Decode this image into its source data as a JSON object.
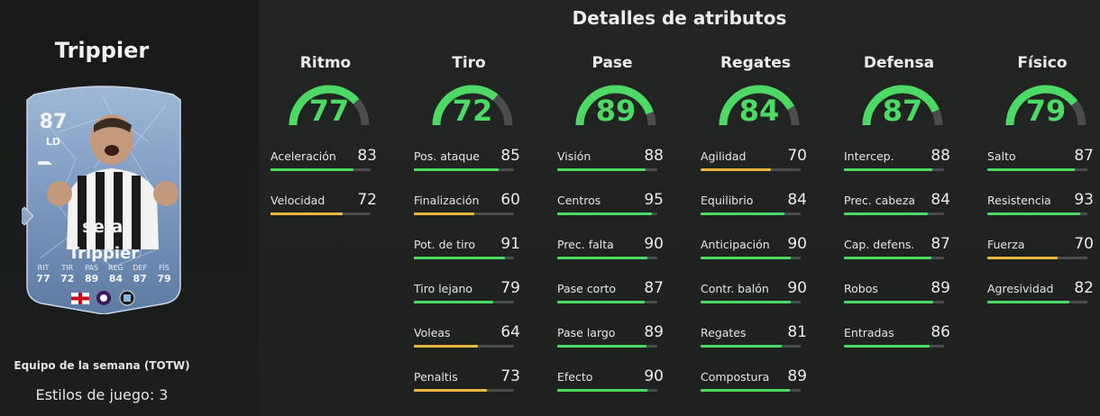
{
  "player": {
    "name": "Trippier",
    "rating": "87",
    "position": "LD",
    "sponsor": "sela",
    "card_stats": [
      {
        "label": "RIT",
        "value": "77"
      },
      {
        "label": "TIR",
        "value": "72"
      },
      {
        "label": "PAS",
        "value": "89"
      },
      {
        "label": "REG",
        "value": "84"
      },
      {
        "label": "DEF",
        "value": "87"
      },
      {
        "label": "FÍS",
        "value": "79"
      }
    ],
    "team_label": "Equipo de la semana (TOTW)",
    "playstyles": "Estilos de juego: 3"
  },
  "section_title": "Detalles de atributos",
  "colors": {
    "high": "#4cd964",
    "mid": "#e8b73c",
    "track": "#4a4d4b"
  },
  "categories": [
    {
      "name": "Ritmo",
      "value": "77",
      "attributes": [
        {
          "name": "Aceleración",
          "value": "83"
        },
        {
          "name": "Velocidad",
          "value": "72"
        }
      ]
    },
    {
      "name": "Tiro",
      "value": "72",
      "attributes": [
        {
          "name": "Pos. ataque",
          "value": "85"
        },
        {
          "name": "Finalización",
          "value": "60"
        },
        {
          "name": "Pot. de tiro",
          "value": "91"
        },
        {
          "name": "Tiro lejano",
          "value": "79"
        },
        {
          "name": "Voleas",
          "value": "64"
        },
        {
          "name": "Penaltis",
          "value": "73"
        }
      ]
    },
    {
      "name": "Pase",
      "value": "89",
      "attributes": [
        {
          "name": "Visión",
          "value": "88"
        },
        {
          "name": "Centros",
          "value": "95"
        },
        {
          "name": "Prec. falta",
          "value": "90"
        },
        {
          "name": "Pase corto",
          "value": "87"
        },
        {
          "name": "Pase largo",
          "value": "89"
        },
        {
          "name": "Efecto",
          "value": "90"
        }
      ]
    },
    {
      "name": "Regates",
      "value": "84",
      "attributes": [
        {
          "name": "Agilidad",
          "value": "70"
        },
        {
          "name": "Equilibrio",
          "value": "84"
        },
        {
          "name": "Anticipación",
          "value": "90"
        },
        {
          "name": "Contr. balón",
          "value": "90"
        },
        {
          "name": "Regates",
          "value": "81"
        },
        {
          "name": "Compostura",
          "value": "89"
        }
      ]
    },
    {
      "name": "Defensa",
      "value": "87",
      "attributes": [
        {
          "name": "Intercep.",
          "value": "88"
        },
        {
          "name": "Prec. cabeza",
          "value": "84"
        },
        {
          "name": "Cap. defens.",
          "value": "87"
        },
        {
          "name": "Robos",
          "value": "89"
        },
        {
          "name": "Entradas",
          "value": "86"
        }
      ]
    },
    {
      "name": "Físico",
      "value": "79",
      "attributes": [
        {
          "name": "Salto",
          "value": "87"
        },
        {
          "name": "Resistencia",
          "value": "93"
        },
        {
          "name": "Fuerza",
          "value": "70"
        },
        {
          "name": "Agresividad",
          "value": "82"
        }
      ]
    }
  ]
}
